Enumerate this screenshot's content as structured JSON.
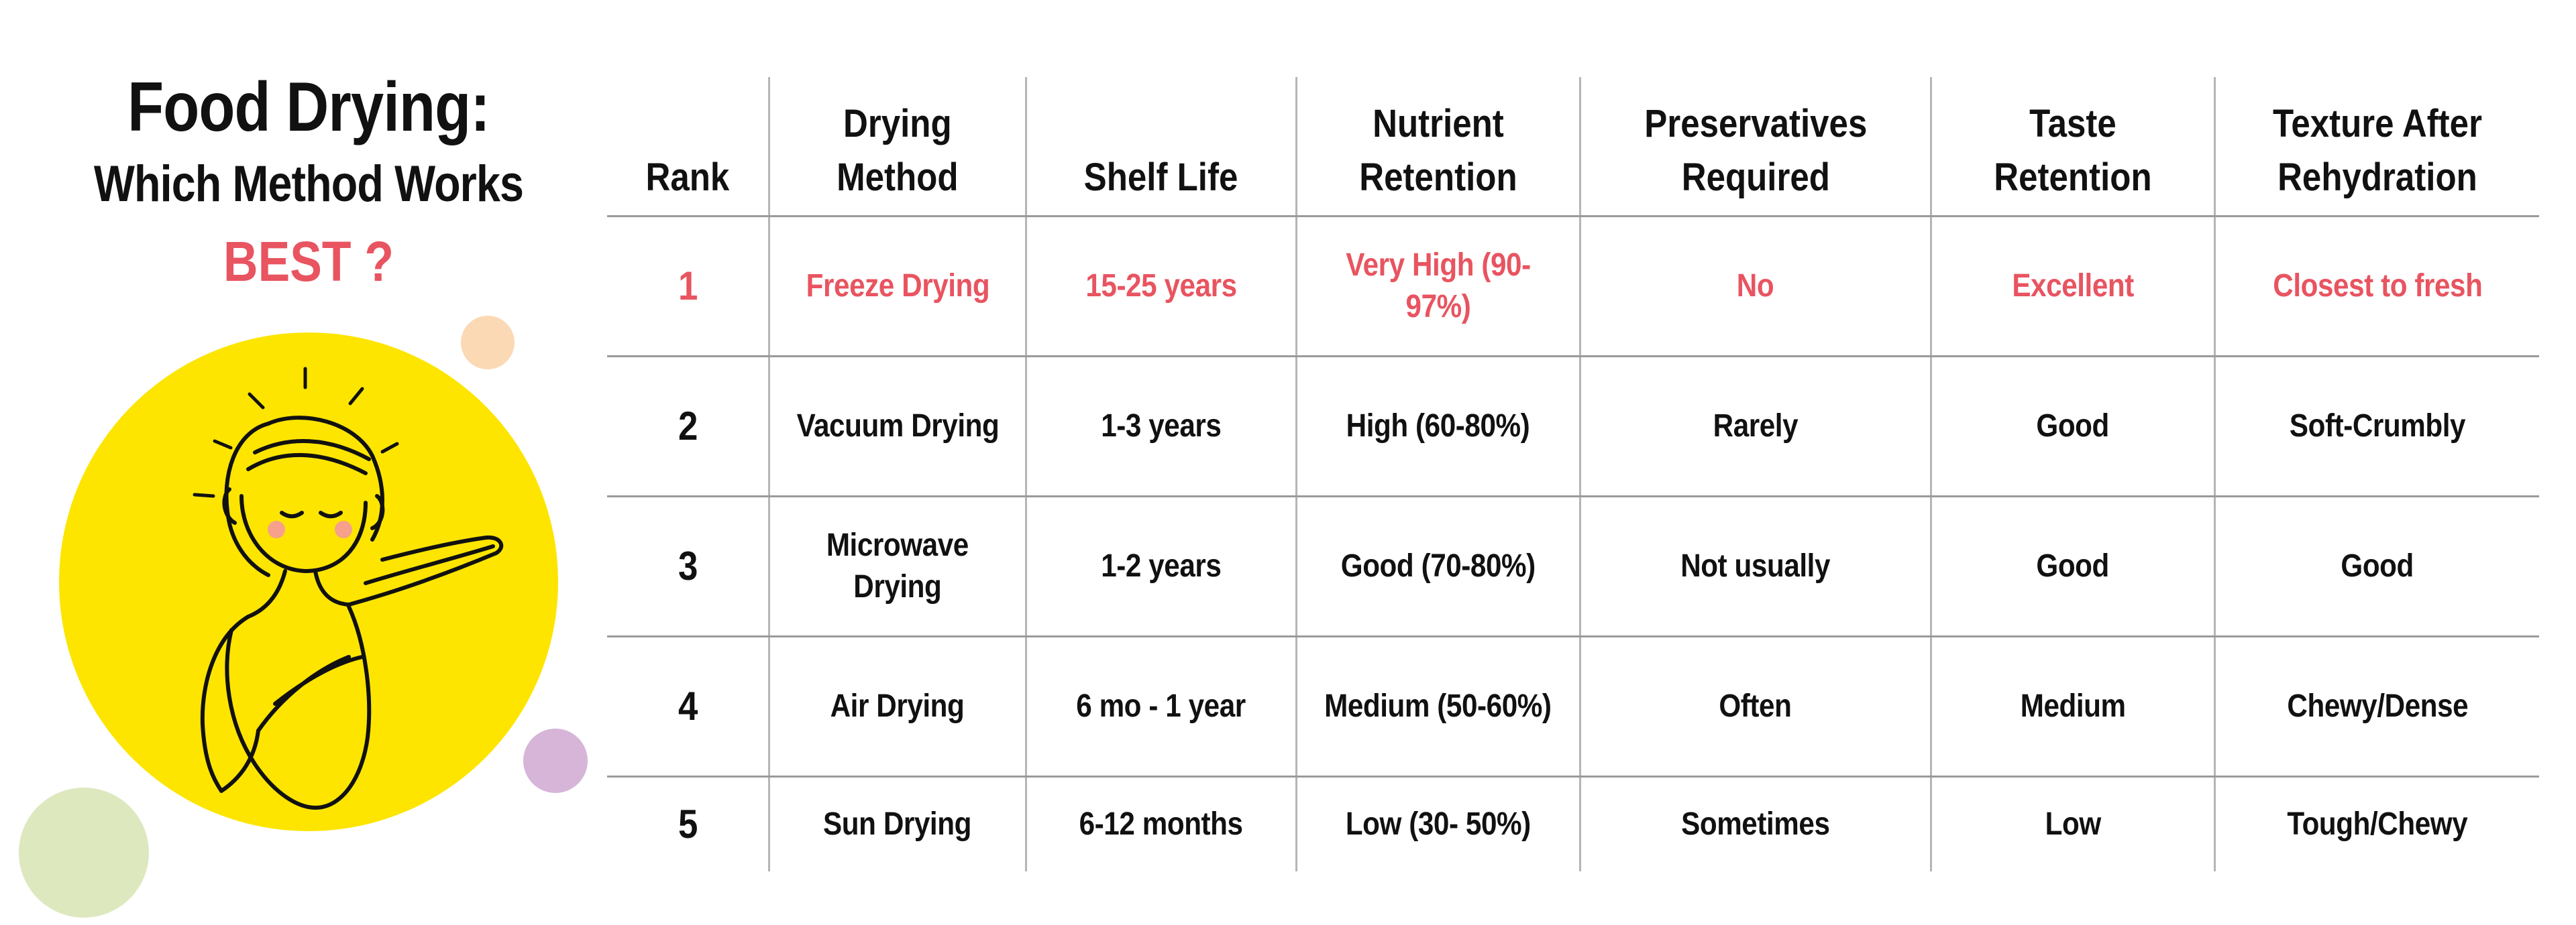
{
  "title": {
    "line1": "Food Drying:",
    "line2": "Which Method Works",
    "line3": "BEST ?"
  },
  "colors": {
    "accent": "#e85460",
    "circle_yellow": "#fde500",
    "circle_peach": "#fbd9b5",
    "circle_lavender": "#d6b5d8",
    "circle_green": "#dde8bf"
  },
  "illustration": {
    "icon": "woman-with-arm-outstretched-icon"
  },
  "table": {
    "headers": [
      "Rank",
      "Drying Method",
      "Shelf Life",
      "Nutrient Retention",
      "Preservatives Required",
      "Taste Retention",
      "Texture After Rehydration"
    ],
    "rows": [
      [
        "1",
        "Freeze Drying",
        "15-25 years",
        "Very High (90-97%)",
        "No",
        "Excellent",
        "Closest to fresh"
      ],
      [
        "2",
        "Vacuum Drying",
        "1-3 years",
        "High (60-80%)",
        "Rarely",
        "Good",
        "Soft-Crumbly"
      ],
      [
        "3",
        "Microwave Drying",
        "1-2 years",
        "Good (70-80%)",
        "Not usually",
        "Good",
        "Good"
      ],
      [
        "4",
        "Air Drying",
        "6 mo - 1 year",
        "Medium (50-60%)",
        "Often",
        "Medium",
        "Chewy/Dense"
      ],
      [
        "5",
        "Sun Drying",
        "6-12 months",
        "Low (30- 50%)",
        "Sometimes",
        "Low",
        "Tough/Chewy"
      ]
    ]
  }
}
